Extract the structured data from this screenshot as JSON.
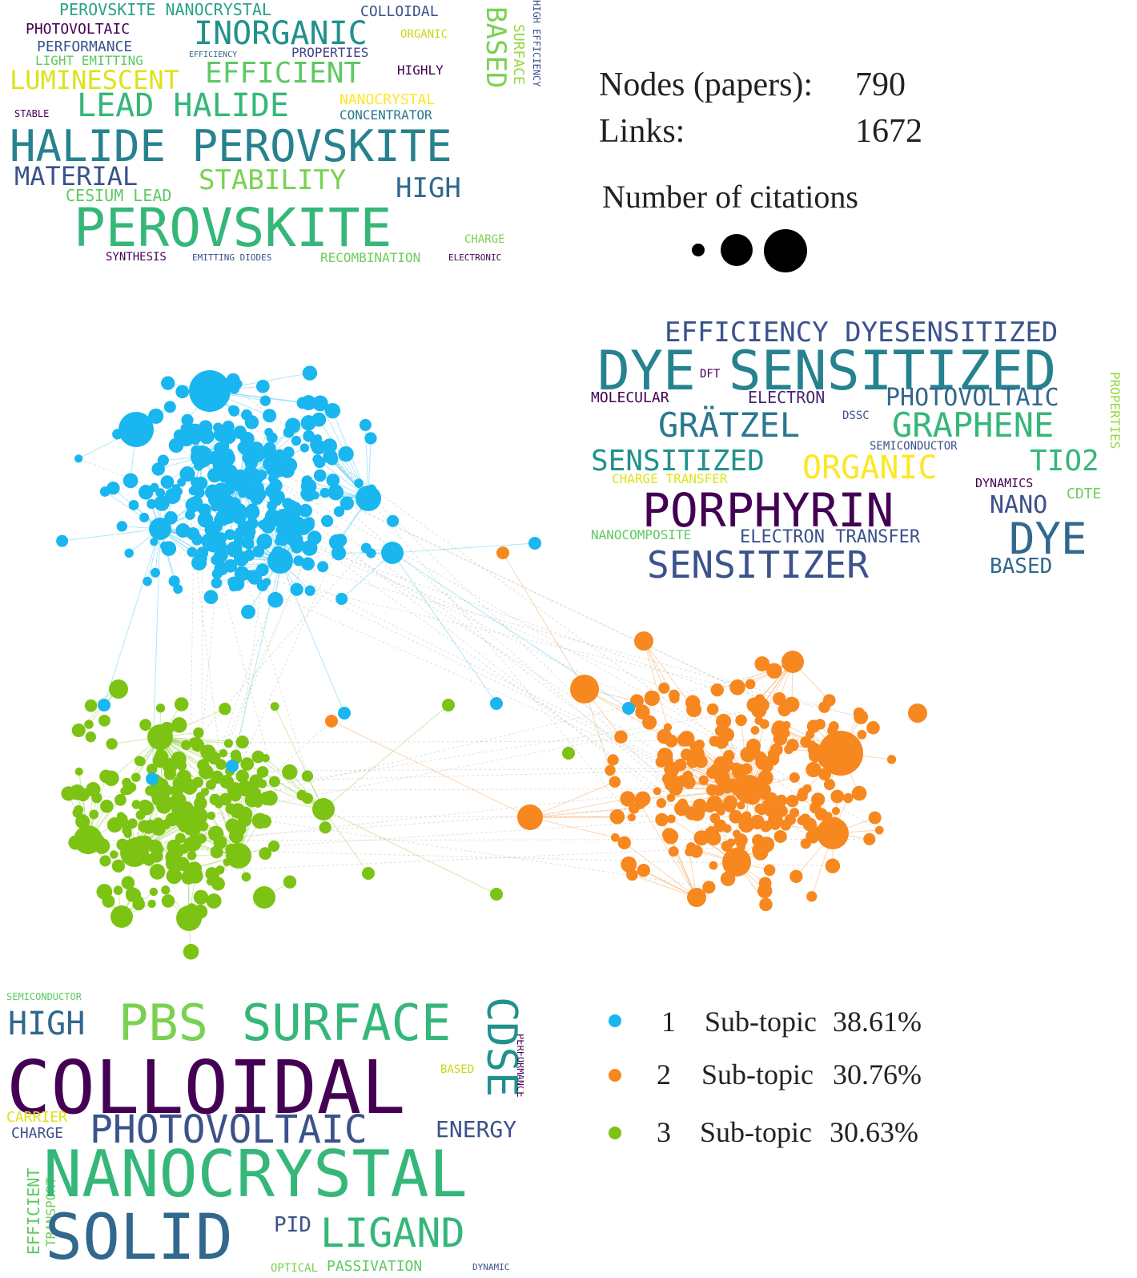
{
  "stats": {
    "nodes_label": "Nodes (papers):",
    "nodes_value": "790",
    "links_label": "Links:",
    "links_value": "1672",
    "citations_label": "Number of citations"
  },
  "legend": [
    {
      "id": "1",
      "label": "Sub-topic",
      "percent": "38.61%",
      "color": "#19b6f0"
    },
    {
      "id": "2",
      "label": "Sub-topic",
      "percent": "30.76%",
      "color": "#f7871f"
    },
    {
      "id": "3",
      "label": "Sub-topic",
      "percent": "30.63%",
      "color": "#7cc313"
    }
  ],
  "wordclouds": {
    "perovskite": [
      "PEROVSKITE NANOCRYSTAL",
      "COLLOIDAL",
      "PHOTOVOLTAIC",
      "INORGANIC",
      "ORGANIC",
      "PERFORMANCE",
      "EFFICIENCY",
      "PROPERTIES",
      "LIGHT EMITTING",
      "HIGHLY",
      "LUMINESCENT",
      "EFFICIENT",
      "BASED",
      "SURFACE",
      "HIGH EFFICIENCY",
      "LEAD HALIDE",
      "NANOCRYSTAL",
      "STABLE",
      "CONCENTRATOR",
      "HALIDE PEROVSKITE",
      "MATERIAL",
      "STABILITY",
      "HIGH",
      "CESIUM LEAD",
      "PEROVSKITE",
      "CHARGE",
      "SYNTHESIS",
      "EMITTING DIODES",
      "RECOMBINATION",
      "ELECTRONIC"
    ],
    "dye": [
      "EFFICIENCY DYESENSITIZED",
      "DYE SENSITIZED",
      "MOLECULAR",
      "ELECTRON",
      "PHOTOVOLTAIC",
      "GRÄTZEL",
      "GRAPHENE",
      "SEMICONDUCTOR",
      "SENSITIZED",
      "ORGANIC",
      "TIO2",
      "CHARGE TRANSFER",
      "DYNAMICS",
      "PORPHYRIN",
      "NANO",
      "CDTE",
      "NANOCOMPOSITE",
      "ELECTRON TRANSFER",
      "DYE",
      "SENSITIZER",
      "BASED",
      "DFT",
      "DSSC",
      "PROPERTIES"
    ],
    "colloidal": [
      "SEMICONDUCTOR",
      "HIGH",
      "PBS",
      "SURFACE",
      "CDSE",
      "COLLOIDAL",
      "PERFORMANCE",
      "BASED",
      "CARRIER",
      "CHARGE",
      "PHOTOVOLTAIC",
      "ENERGY",
      "EFFICIENT",
      "TRANSPORT",
      "NANOCRYSTAL",
      "SOLID",
      "PID",
      "LIGAND",
      "OPTICAL",
      "PASSIVATION",
      "DYNAMIC"
    ]
  }
}
